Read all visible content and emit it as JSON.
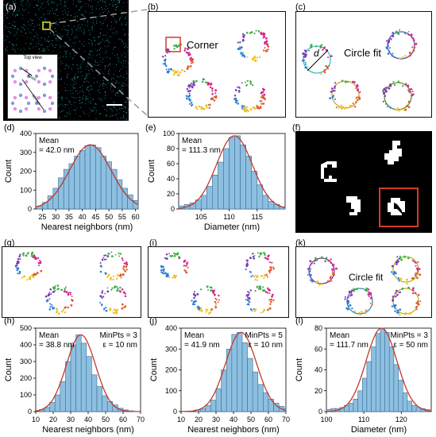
{
  "labels": {
    "a": "(a)",
    "b": "(b)",
    "c": "(c)",
    "d": "(d)",
    "e": "(e)",
    "f": "(f)",
    "g": "(g)",
    "h": "(h)",
    "i": "(i)",
    "j": "(j)",
    "k": "(k)",
    "l": "(l)"
  },
  "panel_a": {
    "inset_title": "Top view",
    "inset_len1": "42nm",
    "inset_len2": "107nm"
  },
  "panel_b": {
    "corner_label": "Corner"
  },
  "panel_c": {
    "fit_label": "Circle fit",
    "diameter_symbol": "d"
  },
  "panel_k": {
    "fit_label": "Circle fit"
  },
  "chart_data": [
    {
      "id": "d",
      "type": "bar",
      "title": "",
      "xlabel": "Nearest neighbors (nm)",
      "ylabel": "Count",
      "xlim": [
        22.5,
        61
      ],
      "ylim": [
        0,
        400
      ],
      "xticks": [
        25,
        30,
        35,
        40,
        45,
        50,
        55,
        60
      ],
      "yticks": [
        0,
        100,
        200,
        300,
        400
      ],
      "bin_start": 23,
      "bin_width": 2,
      "values": [
        15,
        35,
        70,
        110,
        165,
        210,
        240,
        280,
        310,
        335,
        340,
        325,
        280,
        250,
        210,
        155,
        110,
        75,
        45
      ],
      "annot_left": [
        "Mean",
        "= 42.0 nm"
      ],
      "annot_right": []
    },
    {
      "id": "e",
      "type": "bar",
      "title": "",
      "xlabel": "Diameter (nm)",
      "ylabel": "Count",
      "xlim": [
        101,
        120
      ],
      "ylim": [
        0,
        100
      ],
      "xticks": [
        105,
        110,
        115
      ],
      "yticks": [
        0,
        20,
        40,
        60,
        80,
        100
      ],
      "bin_start": 101,
      "bin_width": 1,
      "values": [
        4,
        6,
        8,
        12,
        18,
        30,
        45,
        62,
        80,
        95,
        97,
        85,
        70,
        50,
        32,
        18,
        10,
        6,
        3
      ],
      "annot_left": [
        "Mean",
        "= 111.3 nm"
      ],
      "annot_right": []
    },
    {
      "id": "h",
      "type": "bar",
      "title": "",
      "xlabel": "Nearest neighbors (nm)",
      "ylabel": "Count",
      "xlim": [
        10,
        70
      ],
      "ylim": [
        0,
        500
      ],
      "xticks": [
        10,
        20,
        30,
        40,
        50,
        60,
        70
      ],
      "yticks": [
        0,
        100,
        200,
        300,
        400,
        500
      ],
      "bin_start": 12,
      "bin_width": 3,
      "values": [
        12,
        25,
        55,
        100,
        180,
        300,
        400,
        460,
        410,
        330,
        220,
        150,
        95,
        60,
        40,
        20,
        10,
        5
      ],
      "annot_left": [
        "Mean",
        "= 38.8 nm"
      ],
      "annot_right": [
        "MinPts = 3",
        "ε = 10 nm"
      ]
    },
    {
      "id": "j",
      "type": "bar",
      "title": "",
      "xlabel": "Nearest neighbors (nm)",
      "ylabel": "Count",
      "xlim": [
        10,
        70
      ],
      "ylim": [
        0,
        400
      ],
      "xticks": [
        10,
        20,
        30,
        40,
        50,
        60,
        70
      ],
      "yticks": [
        0,
        100,
        200,
        300,
        400
      ],
      "bin_start": 18,
      "bin_width": 3,
      "values": [
        8,
        15,
        30,
        55,
        110,
        200,
        300,
        370,
        380,
        330,
        255,
        190,
        130,
        90,
        60,
        40,
        25,
        15
      ],
      "annot_left": [
        "Mean",
        "= 41.9 nm"
      ],
      "annot_right": [
        "MinPts = 5",
        "ε = 10 nm"
      ]
    },
    {
      "id": "l",
      "type": "bar",
      "title": "",
      "xlabel": "Diameter (nm)",
      "ylabel": "Count",
      "xlim": [
        100,
        128
      ],
      "ylim": [
        0,
        80
      ],
      "xticks": [
        100,
        110,
        120
      ],
      "yticks": [
        0,
        20,
        40,
        60,
        80
      ],
      "bin_start": 100,
      "bin_width": 1.2,
      "values": [
        2,
        3,
        3,
        4,
        6,
        8,
        12,
        20,
        32,
        48,
        62,
        75,
        80,
        76,
        62,
        45,
        30,
        18,
        10,
        6,
        4,
        3,
        2
      ],
      "annot_left": [
        "Mean",
        "= 111.7 nm"
      ],
      "annot_right": [
        "MinPts = 3",
        "ε = 50 nm"
      ]
    }
  ],
  "colors": {
    "bar": "#8dbfe0",
    "bar_edge": "#3a6f95",
    "fit": "#c0392b",
    "cyan": "#2fc4d6",
    "highlight": "#d63a2a"
  }
}
